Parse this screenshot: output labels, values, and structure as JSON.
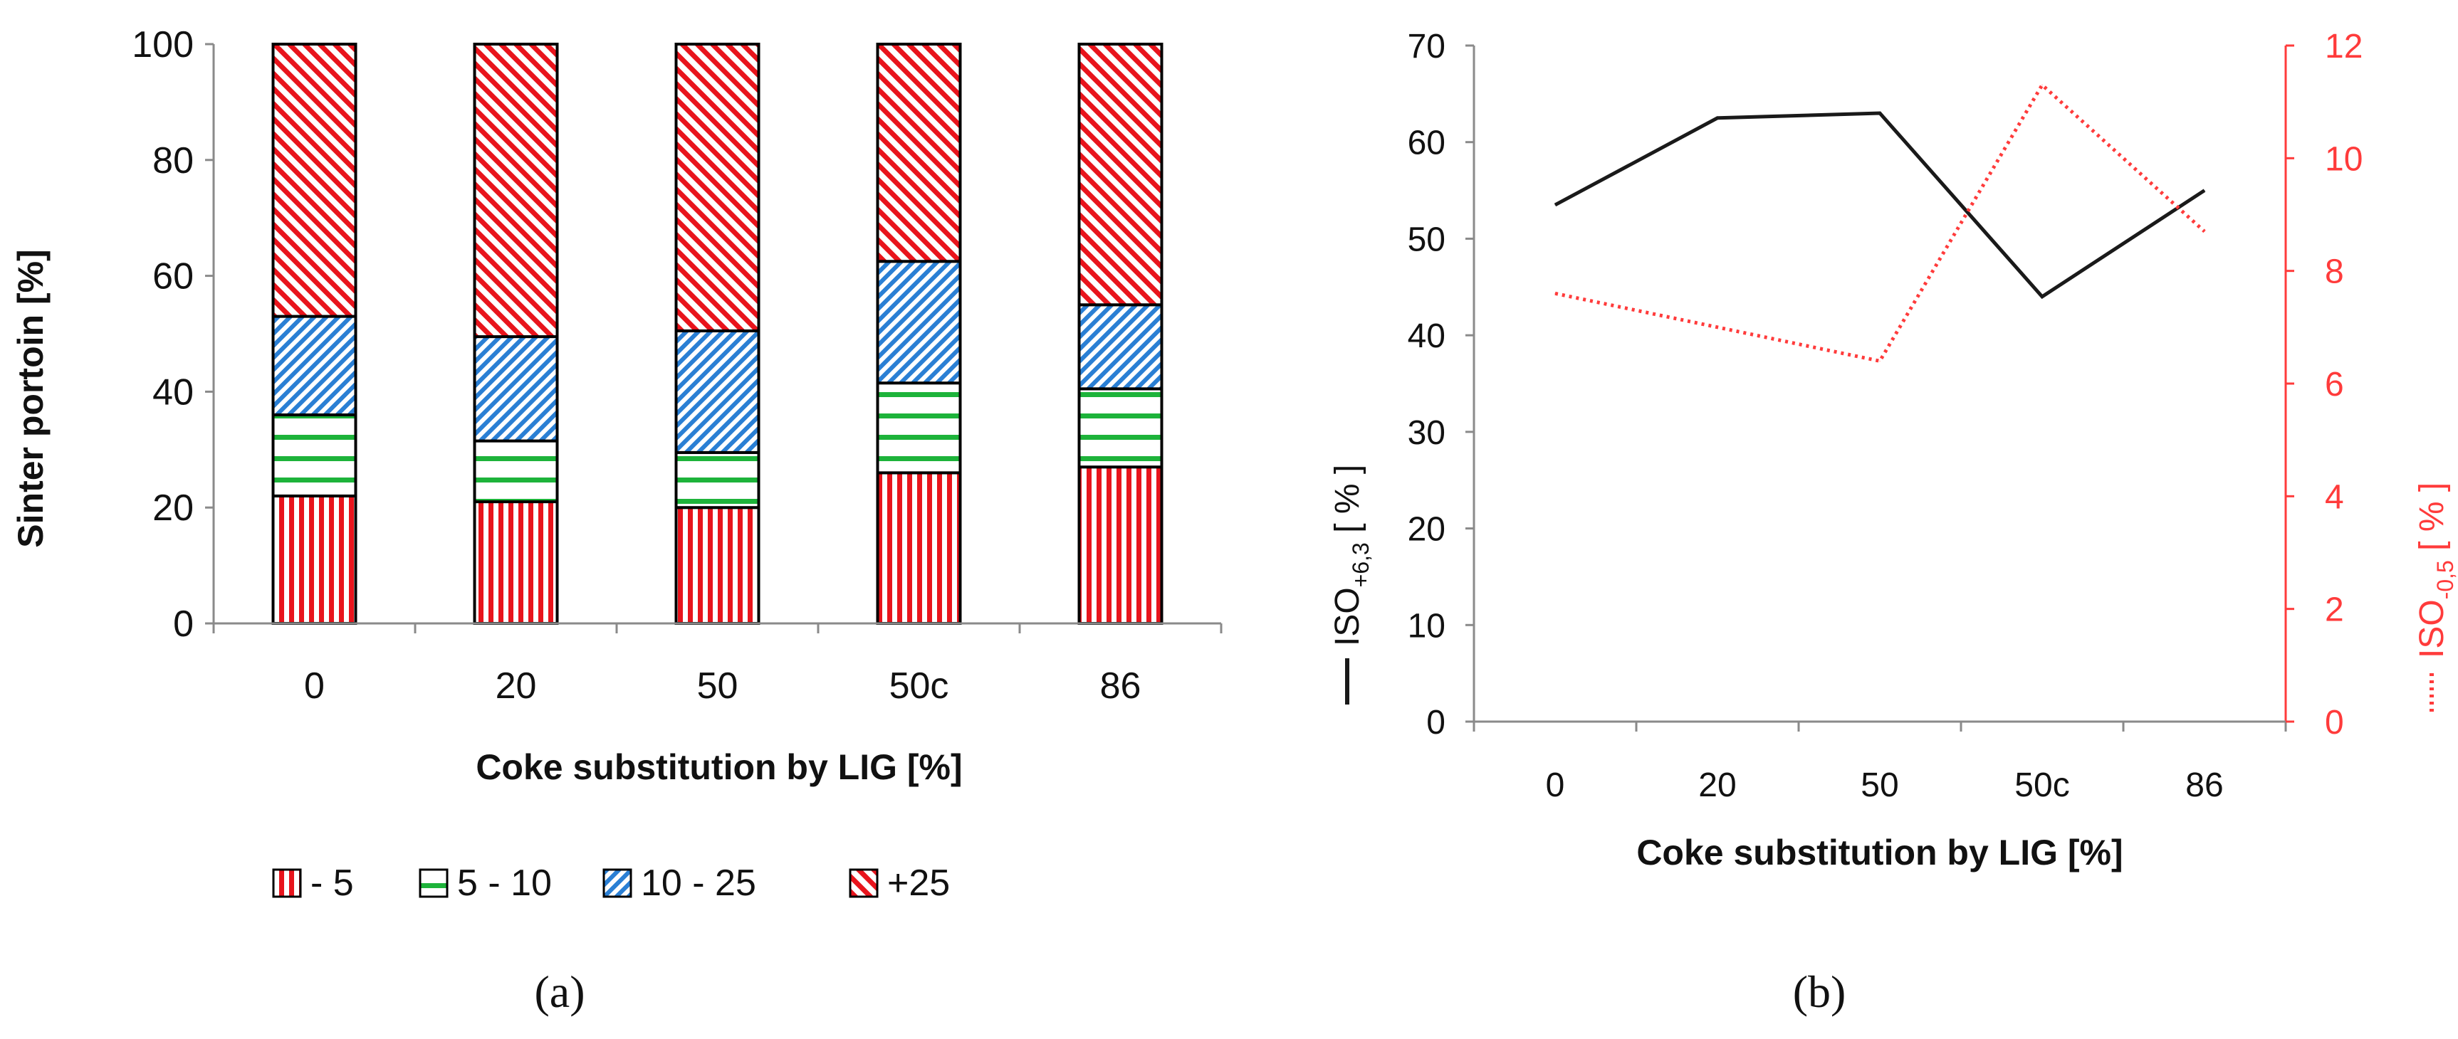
{
  "chart_data": [
    {
      "type": "bar",
      "stacked": true,
      "panel_label": "(a)",
      "categories": [
        "0",
        "20",
        "50",
        "50c",
        "86"
      ],
      "series": [
        {
          "name": "- 5",
          "values": [
            22,
            21,
            20,
            26,
            27
          ],
          "color": "#e8141c",
          "pattern": "vertical-lines"
        },
        {
          "name": "5 - 10",
          "values": [
            14,
            10.5,
            9.5,
            15.5,
            13.5
          ],
          "color": "#1db33a",
          "pattern": "horizontal-lines"
        },
        {
          "name": "10 - 25",
          "values": [
            17,
            18,
            21,
            21,
            14.5
          ],
          "color": "#2a7fd4",
          "pattern": "dense-diagonal"
        },
        {
          "name": "+25",
          "values": [
            47,
            50.5,
            49.5,
            37.5,
            45
          ],
          "color": "#e8141c",
          "pattern": "wide-diagonal"
        }
      ],
      "xlabel": "Coke substitution by LIG [%]",
      "ylabel": "Sinter portoin [%]",
      "ylim": [
        0,
        100
      ],
      "yticks": [
        "0",
        "20",
        "40",
        "60",
        "80",
        "100"
      ],
      "legend_position": "bottom",
      "grid": false
    },
    {
      "type": "line",
      "panel_label": "(b)",
      "categories": [
        "0",
        "20",
        "50",
        "50c",
        "86"
      ],
      "series": [
        {
          "name": "ISO+6,3",
          "axis": "left",
          "values": [
            53.5,
            62.5,
            63,
            44,
            55
          ],
          "color": "#1a1a1a",
          "style": "solid"
        },
        {
          "name": "ISO-0,5",
          "axis": "right",
          "values": [
            7.6,
            7.0,
            6.4,
            11.3,
            8.7
          ],
          "color": "#ff3b3b",
          "style": "dotted"
        }
      ],
      "xlabel": "Coke substitution by LIG [%]",
      "ylabel_left": {
        "prefix": "ISO",
        "sub": "+6,3",
        "suffix": " [ % ]"
      },
      "ylabel_right": {
        "prefix": "ISO",
        "sub": "-0,5",
        "suffix": " [ % ]"
      },
      "ylim_left": [
        0,
        70
      ],
      "ylim_right": [
        0,
        12
      ],
      "yticks_left": [
        "0",
        "10",
        "20",
        "30",
        "40",
        "50",
        "60",
        "70"
      ],
      "yticks_right": [
        "0",
        "2",
        "4",
        "6",
        "8",
        "10",
        "12"
      ],
      "grid": false
    }
  ],
  "colors": {
    "axis_left": "#1a1a1a",
    "axis_right": "#ff3b3b",
    "text": "#111111"
  }
}
